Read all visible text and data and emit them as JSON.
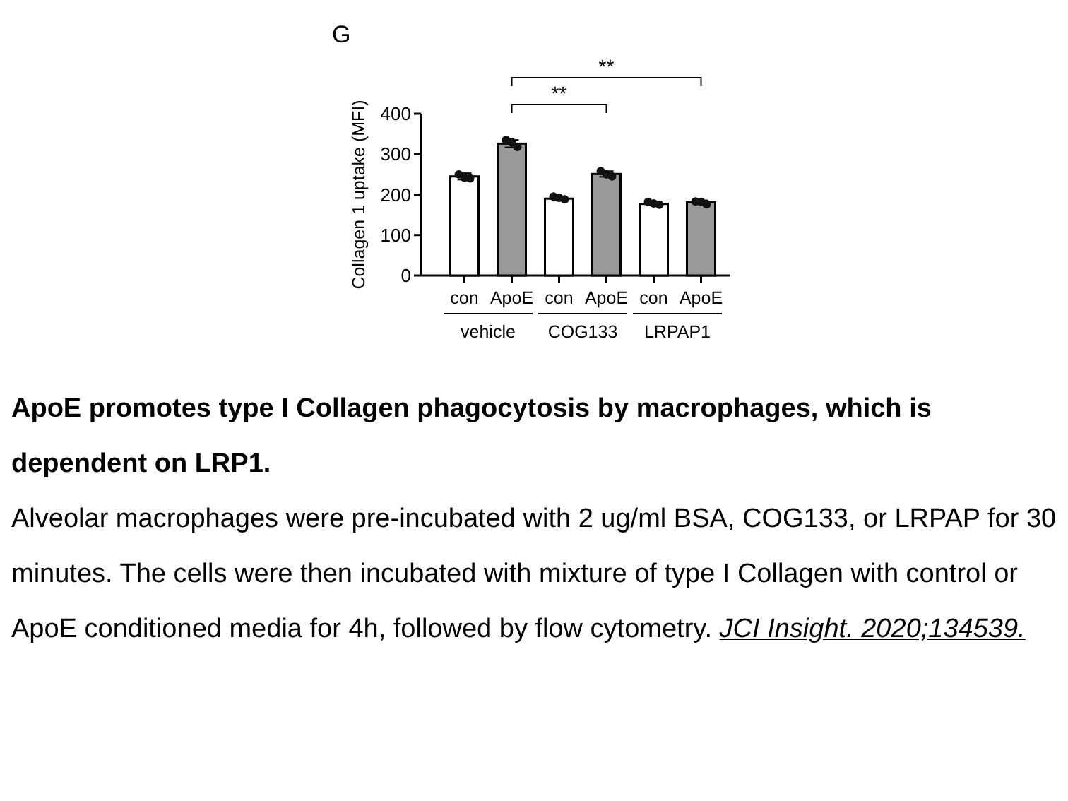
{
  "chart_data": [
    {
      "type": "bar",
      "title": "ApoE promotes type I Collagen phagocytosis by macrophages, which is dependent on LRP1.",
      "ylabel": "Collagen 1 uptake (MFI)",
      "xlabel": "vehicle",
      "categories": [
        "con",
        "ApoE"
      ],
      "values": [
        245,
        326
      ],
      "colors": [
        "#ffffff",
        "#999999"
      ],
      "errors": [
        8,
        9
      ],
      "series": [
        {
          "type": "scatter",
          "color": "#111111",
          "x": [
            "con",
            "con",
            "con",
            "ApoE",
            "ApoE",
            "ApoE"
          ],
          "values": [
            250,
            240,
            242,
            335,
            318,
            330
          ]
        }
      ],
      "marker": "circle",
      "ylim": [
        0,
        400
      ],
      "yticks": [
        0,
        100,
        200,
        300,
        400
      ],
      "annotations": [
        "G",
        "**",
        "**",
        "Alveolar macrophages were pre-incubated with 2 ug/ml BSA, COG133, or LRPAP for 30 minutes. The cells were then incubated with mixture of type I Collagen with control or ApoE conditioned media for 4h, followed by flow cytometry.",
        "JCI Insight. 2020;134539."
      ]
    },
    {
      "type": "bar",
      "xlabel": "COG133",
      "categories": [
        "con",
        "ApoE"
      ],
      "values": [
        190,
        251
      ],
      "colors": [
        "#ffffff",
        "#999999"
      ],
      "errors": [
        5,
        7
      ],
      "series": [
        {
          "type": "scatter",
          "color": "#111111",
          "x": [
            "con",
            "con",
            "con",
            "ApoE",
            "ApoE",
            "ApoE"
          ],
          "values": [
            195,
            188,
            192,
            258,
            245,
            250
          ]
        }
      ],
      "marker": "circle",
      "ylim": [
        0,
        400
      ],
      "tick_labels": "x"
    },
    {
      "type": "bar",
      "xlabel": "LRPAP1",
      "categories": [
        "con",
        "ApoE"
      ],
      "values": [
        177,
        181
      ],
      "colors": [
        "#ffffff",
        "#999999"
      ],
      "errors": [
        4,
        5
      ],
      "series": [
        {
          "type": "scatter",
          "color": "#111111",
          "x": [
            "con",
            "con",
            "con",
            "ApoE",
            "ApoE",
            "ApoE"
          ],
          "values": [
            182,
            175,
            178,
            183,
            176,
            182
          ]
        }
      ],
      "marker": "circle",
      "ylim": [
        0,
        400
      ],
      "tick_labels": "x"
    }
  ]
}
